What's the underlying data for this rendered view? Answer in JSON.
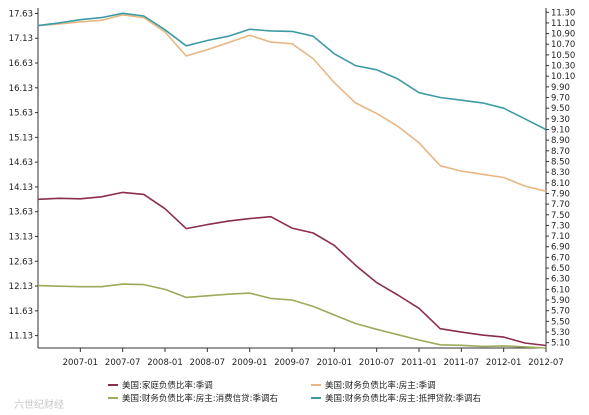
{
  "chart_data": {
    "type": "line",
    "x": [
      "2006-07",
      "2006-10",
      "2007-01",
      "2007-04",
      "2007-07",
      "2007-10",
      "2008-01",
      "2008-04",
      "2008-07",
      "2008-10",
      "2009-01",
      "2009-04",
      "2009-07",
      "2009-10",
      "2010-01",
      "2010-04",
      "2010-07",
      "2010-10",
      "2011-01",
      "2011-04",
      "2011-07",
      "2011-10",
      "2012-01",
      "2012-04",
      "2012-07"
    ],
    "xticks": [
      "2007-01",
      "2007-07",
      "2008-01",
      "2008-07",
      "2009-01",
      "2009-07",
      "2010-01",
      "2010-07",
      "2011-01",
      "2011-07",
      "2012-01",
      "2012-07"
    ],
    "y_left_ticks": [
      "11.13",
      "11.63",
      "12.13",
      "12.63",
      "13.13",
      "13.63",
      "14.13",
      "14.63",
      "15.13",
      "15.63",
      "16.13",
      "16.63",
      "17.13",
      "17.63"
    ],
    "y_right_ticks": [
      "5.10",
      "5.30",
      "5.50",
      "5.70",
      "5.90",
      "6.10",
      "6.30",
      "6.50",
      "6.70",
      "6.90",
      "7.10",
      "7.30",
      "7.50",
      "7.70",
      "7.90",
      "8.10",
      "8.30",
      "8.50",
      "8.70",
      "8.90",
      "9.10",
      "9.30",
      "9.50",
      "9.70",
      "9.90",
      "10.10",
      "10.30",
      "10.50",
      "10.70",
      "10.90",
      "11.10",
      "11.30"
    ],
    "ylim_left": [
      10.88,
      17.74
    ],
    "ylim_right": [
      5.0,
      11.38
    ],
    "legend_position": "bottom",
    "series": [
      {
        "name": "美国:家庭负债比率:季调",
        "axis": "left",
        "color": "#8b2d4f",
        "values": [
          13.88,
          13.9,
          13.89,
          13.93,
          14.02,
          13.98,
          13.69,
          13.29,
          13.37,
          13.44,
          13.49,
          13.53,
          13.3,
          13.2,
          12.95,
          12.55,
          12.2,
          11.95,
          11.68,
          11.27,
          11.2,
          11.14,
          11.1,
          10.98,
          10.93
        ]
      },
      {
        "name": "美国:财务负债比率:房主:季调",
        "axis": "right",
        "color": "#e8b783",
        "values": [
          11.05,
          11.08,
          11.12,
          11.15,
          11.25,
          11.2,
          10.93,
          10.48,
          10.6,
          10.73,
          10.87,
          10.74,
          10.71,
          10.43,
          9.98,
          9.6,
          9.4,
          9.16,
          8.85,
          8.42,
          8.32,
          8.26,
          8.2,
          8.04,
          7.94
        ]
      },
      {
        "name": "美国:财务负债比率:房主:消费信贷:季调右",
        "axis": "right",
        "color": "#9aab5c",
        "values": [
          6.17,
          6.16,
          6.15,
          6.15,
          6.2,
          6.19,
          6.1,
          5.95,
          5.98,
          6.01,
          6.03,
          5.93,
          5.9,
          5.78,
          5.62,
          5.46,
          5.35,
          5.25,
          5.15,
          5.06,
          5.05,
          5.03,
          5.04,
          5.02,
          5.0
        ]
      },
      {
        "name": "美国:财务负债比率:房主:抵押贷款:季调右",
        "axis": "right",
        "color": "#3d9ba6",
        "values": [
          11.05,
          11.1,
          11.16,
          11.2,
          11.28,
          11.23,
          10.97,
          10.67,
          10.77,
          10.85,
          10.98,
          10.95,
          10.94,
          10.85,
          10.52,
          10.3,
          10.22,
          10.05,
          9.79,
          9.7,
          9.65,
          9.6,
          9.5,
          9.3,
          9.1
        ]
      }
    ]
  },
  "watermark": "六世纪财经"
}
